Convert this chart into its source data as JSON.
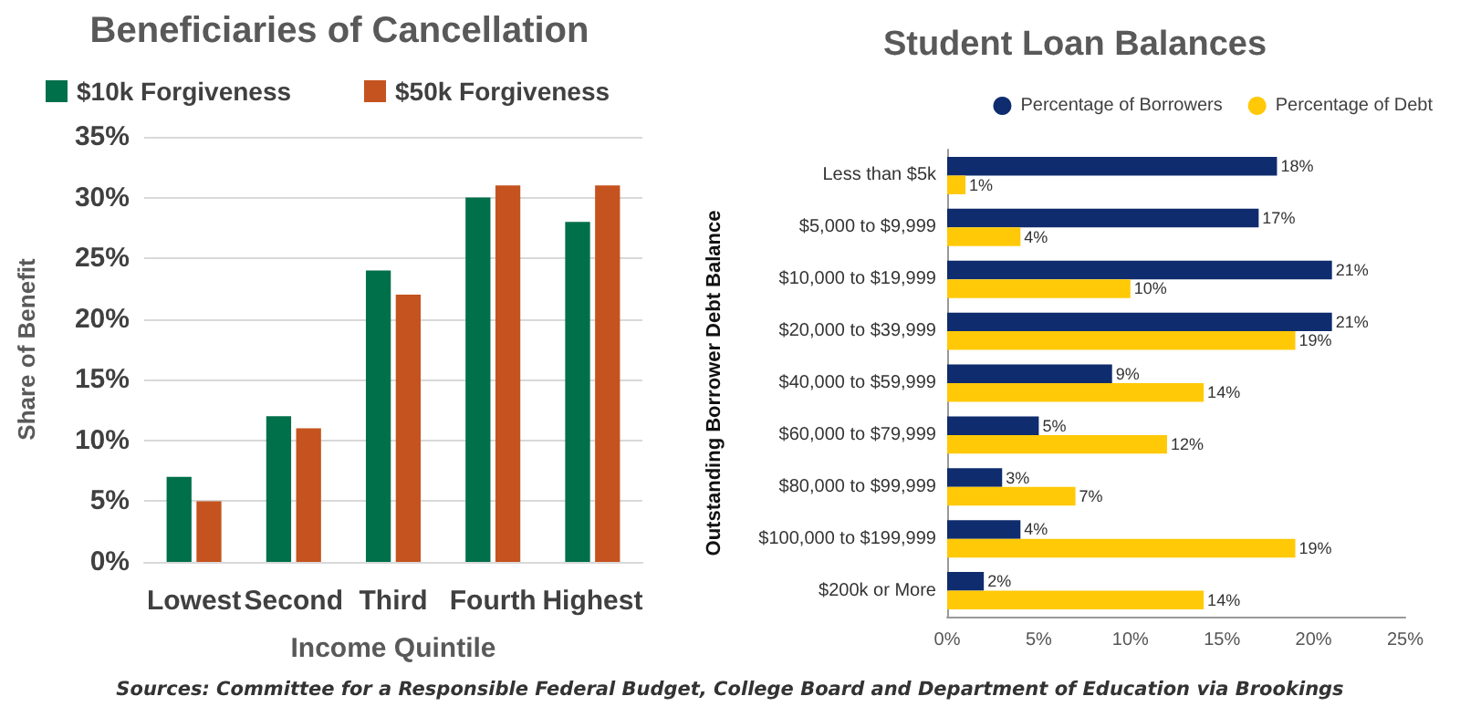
{
  "chart_data": [
    {
      "type": "bar",
      "title": "Beneficiaries of Cancellation",
      "xlabel": "Income Quintile",
      "ylabel": "Share of Benefit",
      "categories": [
        "Lowest",
        "Second",
        "Third",
        "Fourth",
        "Highest"
      ],
      "series": [
        {
          "name": "$10k Forgiveness",
          "color": "#00704a",
          "values": [
            7,
            12,
            24,
            30,
            28
          ]
        },
        {
          "name": "$50k Forgiveness",
          "color": "#c5531f",
          "values": [
            5,
            11,
            22,
            31,
            31
          ]
        }
      ],
      "ylim": [
        0,
        35
      ],
      "yticks": [
        {
          "value": 0,
          "label": "0%"
        },
        {
          "value": 5,
          "label": "5%"
        },
        {
          "value": 10,
          "label": "10%"
        },
        {
          "value": 15,
          "label": "15%"
        },
        {
          "value": 20,
          "label": "20%"
        },
        {
          "value": 25,
          "label": "25%"
        },
        {
          "value": 30,
          "label": "30%"
        },
        {
          "value": 35,
          "label": "35%"
        }
      ],
      "grid": "y",
      "legend": "top left"
    },
    {
      "type": "bar",
      "orientation": "horizontal",
      "title": "Student Loan Balances",
      "ylabel": "Outstanding Borrower Debt Balance",
      "categories": [
        "Less than $5k",
        "$5,000 to $9,999",
        "$10,000 to $19,999",
        "$20,000 to $39,999",
        "$40,000 to $59,999",
        "$60,000 to $79,999",
        "$80,000 to $99,999",
        "$100,000 to $199,999",
        "$200k or More"
      ],
      "series": [
        {
          "name": "Percentage of Borrowers",
          "color": "#0f2c6e",
          "values": [
            18,
            17,
            21,
            21,
            9,
            5,
            3,
            4,
            2
          ],
          "value_labels": [
            "18%",
            "17%",
            "21%",
            "21%",
            "9%",
            "5%",
            "3%",
            "4%",
            "2%"
          ]
        },
        {
          "name": "Percentage of Debt",
          "color": "#ffc907",
          "values": [
            1,
            4,
            10,
            19,
            14,
            12,
            7,
            19,
            14
          ],
          "value_labels": [
            "1%",
            "4%",
            "10%",
            "19%",
            "14%",
            "12%",
            "7%",
            "19%",
            "14%"
          ]
        }
      ],
      "xlim": [
        0,
        25
      ],
      "xticks": [
        {
          "value": 0,
          "label": "0%"
        },
        {
          "value": 5,
          "label": "5%"
        },
        {
          "value": 10,
          "label": "10%"
        },
        {
          "value": 15,
          "label": "15%"
        },
        {
          "value": 20,
          "label": "20%"
        },
        {
          "value": 25,
          "label": "25%"
        }
      ],
      "grid": false,
      "legend": "top right",
      "annotations": [
        "Sources: Committee for a Responsible Federal Budget, College Board and Department of Education via Brookings"
      ]
    }
  ]
}
